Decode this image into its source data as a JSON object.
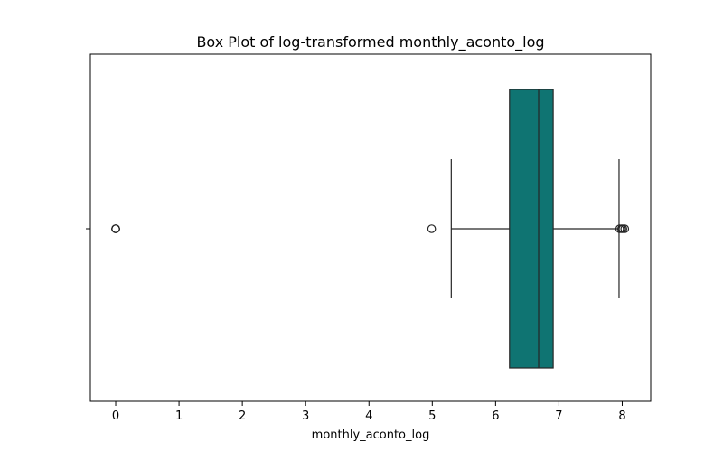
{
  "chart_data": {
    "type": "box",
    "orientation": "horizontal",
    "title": "Box Plot of log-transformed monthly_aconto_log",
    "xlabel": "monthly_aconto_log",
    "ylabel": "",
    "xlim": [
      -0.4,
      8.45
    ],
    "xticks": [
      0,
      1,
      2,
      3,
      4,
      5,
      6,
      7,
      8
    ],
    "grid": false,
    "box_color": "#0f7472",
    "box": {
      "whisker_low": 5.3,
      "q1": 6.22,
      "median": 6.68,
      "q3": 6.91,
      "whisker_high": 7.95
    },
    "outliers": [
      0,
      0,
      0,
      0,
      4.99,
      7.96,
      7.99,
      8.01,
      8.04
    ]
  }
}
